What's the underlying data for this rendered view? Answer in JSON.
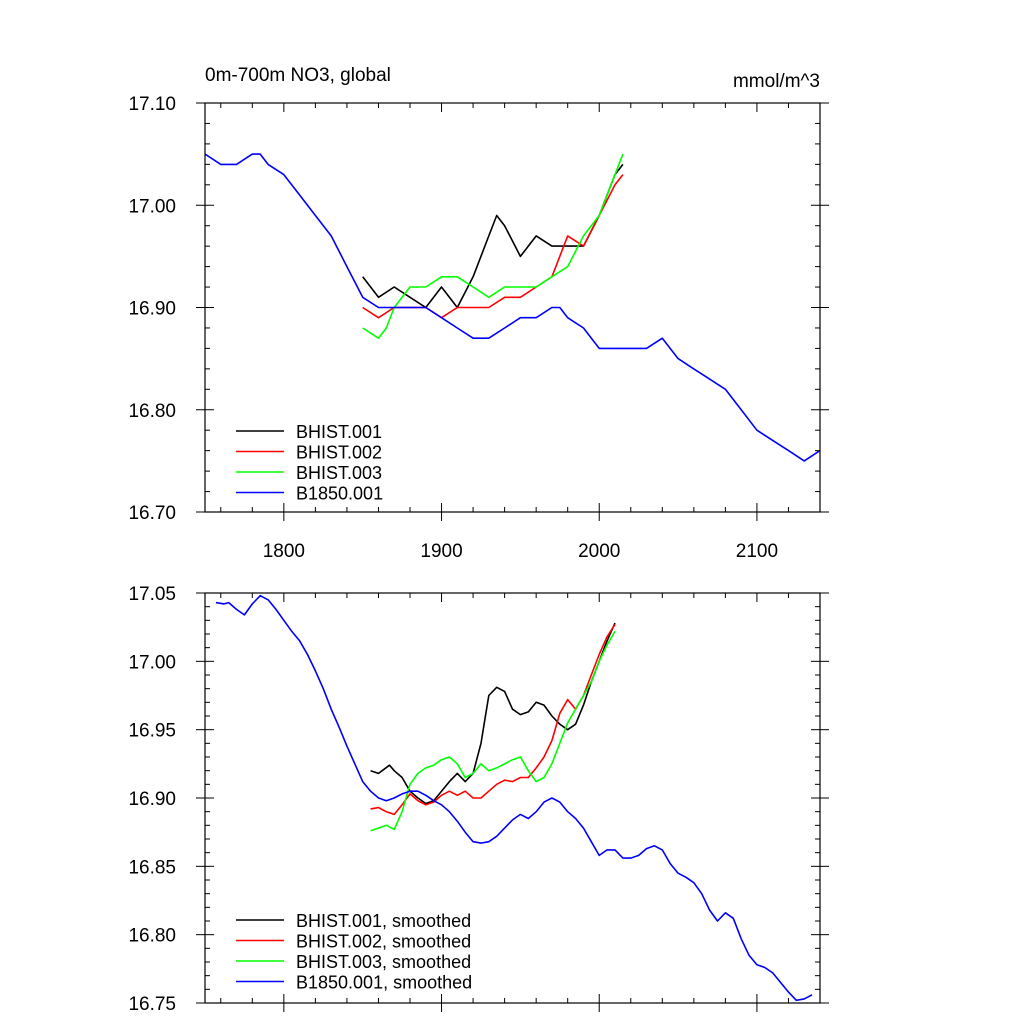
{
  "chart_data": [
    {
      "type": "line",
      "title": "0m-700m NO3, global",
      "units": "mmol/m^3",
      "xlim": [
        1750,
        2140
      ],
      "ylim": [
        16.7,
        17.1
      ],
      "xticks": [
        1800,
        1900,
        2000,
        2100
      ],
      "xtick_labels": [
        "1800",
        "1900",
        "2000",
        "2100"
      ],
      "yticks": [
        16.7,
        16.8,
        16.9,
        17.0,
        17.1
      ],
      "ytick_labels": [
        "16.70",
        "16.80",
        "16.90",
        "17.00",
        "17.10"
      ],
      "legend_position": "bottom-left",
      "series": [
        {
          "name": "BHIST.001",
          "color": "#000000",
          "x": [
            1850,
            1860,
            1870,
            1880,
            1890,
            1900,
            1910,
            1920,
            1930,
            1935,
            1940,
            1950,
            1960,
            1970,
            1980,
            1990,
            2000,
            2010,
            2015
          ],
          "y": [
            16.93,
            16.91,
            16.92,
            16.91,
            16.9,
            16.92,
            16.9,
            16.93,
            16.97,
            16.99,
            16.98,
            16.95,
            16.97,
            16.96,
            16.96,
            16.96,
            16.99,
            17.03,
            17.04
          ]
        },
        {
          "name": "BHIST.002",
          "color": "#ff0000",
          "x": [
            1850,
            1860,
            1870,
            1880,
            1890,
            1900,
            1910,
            1920,
            1930,
            1940,
            1950,
            1960,
            1970,
            1980,
            1990,
            2000,
            2010,
            2015
          ],
          "y": [
            16.9,
            16.89,
            16.9,
            16.9,
            16.9,
            16.89,
            16.9,
            16.9,
            16.9,
            16.91,
            16.91,
            16.92,
            16.93,
            16.97,
            16.96,
            16.99,
            17.02,
            17.03
          ]
        },
        {
          "name": "BHIST.003",
          "color": "#00ff00",
          "x": [
            1850,
            1860,
            1865,
            1870,
            1880,
            1890,
            1900,
            1910,
            1920,
            1930,
            1940,
            1950,
            1960,
            1970,
            1980,
            1990,
            2000,
            2010,
            2015
          ],
          "y": [
            16.88,
            16.87,
            16.88,
            16.9,
            16.92,
            16.92,
            16.93,
            16.93,
            16.92,
            16.91,
            16.92,
            16.92,
            16.92,
            16.93,
            16.94,
            16.97,
            16.99,
            17.03,
            17.05
          ]
        },
        {
          "name": "B1850.001",
          "color": "#0000ff",
          "x": [
            1750,
            1760,
            1770,
            1780,
            1785,
            1790,
            1800,
            1810,
            1820,
            1830,
            1840,
            1850,
            1860,
            1870,
            1880,
            1890,
            1900,
            1910,
            1920,
            1930,
            1940,
            1950,
            1960,
            1970,
            1975,
            1980,
            1990,
            2000,
            2010,
            2020,
            2030,
            2040,
            2050,
            2060,
            2070,
            2080,
            2090,
            2100,
            2110,
            2120,
            2130,
            2140
          ],
          "y": [
            17.05,
            17.04,
            17.04,
            17.05,
            17.05,
            17.04,
            17.03,
            17.01,
            16.99,
            16.97,
            16.94,
            16.91,
            16.9,
            16.9,
            16.9,
            16.9,
            16.89,
            16.88,
            16.87,
            16.87,
            16.88,
            16.89,
            16.89,
            16.9,
            16.9,
            16.89,
            16.88,
            16.86,
            16.86,
            16.86,
            16.86,
            16.87,
            16.85,
            16.84,
            16.83,
            16.82,
            16.8,
            16.78,
            16.77,
            16.76,
            16.75,
            16.76
          ]
        }
      ]
    },
    {
      "type": "line",
      "title": "",
      "xlim": [
        1750,
        2140
      ],
      "ylim": [
        16.75,
        17.05
      ],
      "xticks": [
        1800,
        1900,
        2000,
        2100
      ],
      "xtick_labels": [],
      "yticks": [
        16.75,
        16.8,
        16.85,
        16.9,
        16.95,
        17.0,
        17.05
      ],
      "ytick_labels": [
        "16.75",
        "16.80",
        "16.85",
        "16.90",
        "16.95",
        "17.00",
        "17.05"
      ],
      "legend_position": "bottom-left",
      "series": [
        {
          "name": "BHIST.001, smoothed",
          "color": "#000000",
          "x": [
            1855,
            1860,
            1867,
            1870,
            1875,
            1880,
            1885,
            1890,
            1895,
            1900,
            1905,
            1910,
            1915,
            1920,
            1925,
            1930,
            1935,
            1940,
            1945,
            1950,
            1955,
            1960,
            1965,
            1970,
            1975,
            1980,
            1985,
            1990,
            1995,
            2000,
            2005,
            2010
          ],
          "y": [
            16.92,
            16.918,
            16.924,
            16.92,
            16.915,
            16.905,
            16.9,
            16.896,
            16.898,
            16.905,
            16.912,
            16.918,
            16.912,
            16.918,
            16.94,
            16.975,
            16.981,
            16.978,
            16.965,
            16.961,
            16.963,
            16.97,
            16.968,
            16.96,
            16.954,
            16.95,
            16.954,
            16.968,
            16.985,
            17.0,
            17.015,
            17.028
          ]
        },
        {
          "name": "BHIST.002, smoothed",
          "color": "#ff0000",
          "x": [
            1855,
            1860,
            1865,
            1870,
            1875,
            1880,
            1885,
            1890,
            1895,
            1900,
            1905,
            1910,
            1915,
            1920,
            1925,
            1930,
            1935,
            1940,
            1945,
            1950,
            1955,
            1960,
            1965,
            1970,
            1975,
            1980,
            1985,
            1990,
            1995,
            2000,
            2005,
            2010
          ],
          "y": [
            16.892,
            16.893,
            16.89,
            16.888,
            16.895,
            16.903,
            16.898,
            16.895,
            16.897,
            16.902,
            16.905,
            16.902,
            16.905,
            16.9,
            16.9,
            16.905,
            16.91,
            16.913,
            16.912,
            16.915,
            16.915,
            16.922,
            16.93,
            16.942,
            16.962,
            16.972,
            16.965,
            16.975,
            16.99,
            17.005,
            17.018,
            17.027
          ]
        },
        {
          "name": "BHIST.003, smoothed",
          "color": "#00ff00",
          "x": [
            1855,
            1860,
            1865,
            1870,
            1875,
            1880,
            1885,
            1890,
            1895,
            1900,
            1905,
            1910,
            1915,
            1920,
            1925,
            1930,
            1935,
            1940,
            1945,
            1950,
            1955,
            1960,
            1965,
            1970,
            1975,
            1980,
            1985,
            1990,
            1995,
            2000,
            2005,
            2010
          ],
          "y": [
            16.876,
            16.878,
            16.88,
            16.877,
            16.89,
            16.91,
            16.918,
            16.922,
            16.924,
            16.928,
            16.93,
            16.925,
            16.915,
            16.918,
            16.925,
            16.92,
            16.922,
            16.925,
            16.928,
            16.93,
            16.92,
            16.912,
            16.915,
            16.925,
            16.94,
            16.955,
            16.965,
            16.975,
            16.985,
            17.0,
            17.012,
            17.022
          ]
        },
        {
          "name": "B1850.001, smoothed",
          "color": "#0000ff",
          "x": [
            1757,
            1762,
            1765,
            1770,
            1775,
            1780,
            1785,
            1790,
            1795,
            1800,
            1805,
            1810,
            1815,
            1820,
            1825,
            1830,
            1835,
            1840,
            1845,
            1850,
            1855,
            1860,
            1865,
            1870,
            1875,
            1880,
            1885,
            1890,
            1895,
            1900,
            1905,
            1910,
            1915,
            1920,
            1925,
            1930,
            1935,
            1940,
            1945,
            1950,
            1955,
            1960,
            1965,
            1970,
            1975,
            1980,
            1985,
            1990,
            1995,
            2000,
            2005,
            2010,
            2015,
            2020,
            2025,
            2030,
            2035,
            2040,
            2045,
            2050,
            2055,
            2060,
            2065,
            2070,
            2075,
            2080,
            2085,
            2090,
            2095,
            2100,
            2105,
            2110,
            2115,
            2120,
            2125,
            2130,
            2135
          ],
          "y": [
            17.043,
            17.042,
            17.043,
            17.038,
            17.034,
            17.042,
            17.048,
            17.045,
            17.038,
            17.03,
            17.022,
            17.015,
            17.005,
            16.993,
            16.98,
            16.965,
            16.952,
            16.938,
            16.925,
            16.912,
            16.905,
            16.9,
            16.898,
            16.9,
            16.903,
            16.905,
            16.905,
            16.902,
            16.898,
            16.895,
            16.89,
            16.883,
            16.875,
            16.868,
            16.867,
            16.868,
            16.872,
            16.878,
            16.884,
            16.888,
            16.885,
            16.89,
            16.897,
            16.9,
            16.897,
            16.89,
            16.885,
            16.878,
            16.868,
            16.858,
            16.862,
            16.862,
            16.856,
            16.856,
            16.858,
            16.863,
            16.865,
            16.862,
            16.852,
            16.845,
            16.842,
            16.838,
            16.83,
            16.818,
            16.81,
            16.816,
            16.812,
            16.797,
            16.785,
            16.778,
            16.776,
            16.772,
            16.765,
            16.758,
            16.752,
            16.753,
            16.756
          ]
        }
      ]
    }
  ]
}
